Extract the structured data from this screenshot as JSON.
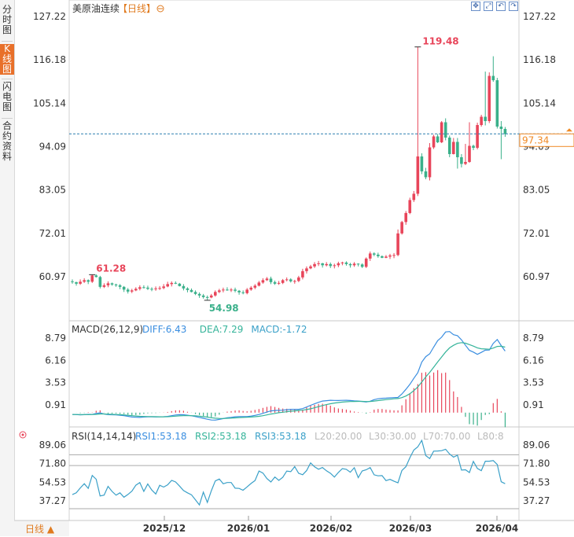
{
  "sidebar": {
    "tabs": [
      {
        "label": "分时图",
        "active": false
      },
      {
        "label": "K线图",
        "active": true
      },
      {
        "label": "闪电图",
        "active": false
      },
      {
        "label": "合约资料",
        "active": false
      }
    ]
  },
  "header": {
    "title": "美原油连续",
    "period_tag": "【日线】",
    "zoom_icon": "zoom-out-icon"
  },
  "toolbar": {
    "icons": [
      "move-icon",
      "fit-icon",
      "undo-icon",
      "redo-icon"
    ]
  },
  "bottom_bar": {
    "period_label": "日线 ▲"
  },
  "colors": {
    "up": "#e8455a",
    "down": "#3ab08a",
    "diff": "#3a8ee0",
    "dea": "#35b49a",
    "rsi": "#3aa0c8",
    "accent": "#e07a1e",
    "last_price": "#f08a24"
  },
  "chart_data": [
    {
      "panel": "price",
      "type": "candlestick",
      "title": "美原油连续【日线】",
      "y_ticks": [
        "127.22",
        "116.18",
        "105.14",
        "94.09",
        "83.05",
        "72.01",
        "60.97"
      ],
      "ylim": [
        55.0,
        127.22
      ],
      "x_ticks": [
        "2025/12",
        "2026/01",
        "2026/02",
        "2026/03",
        "2026/04"
      ],
      "annotations": {
        "high": "119.48",
        "low": "54.98",
        "start_label": "61.28"
      },
      "last_price": "97.34",
      "series": [
        {
          "name": "close",
          "open": [
            59.8,
            59.6,
            59.2,
            59.7,
            60.1,
            59.7,
            61.3,
            60.9,
            58.4,
            58.8,
            59.3,
            59.0,
            58.8,
            58.4,
            57.7,
            57.2,
            57.5,
            57.9,
            58.3,
            58.2,
            57.9,
            57.8,
            58.0,
            58.1,
            58.5,
            59.1,
            59.4,
            59.2,
            58.6,
            58.0,
            57.6,
            57.1,
            56.6,
            56.2,
            55.8,
            55.7,
            56.2,
            57.1,
            57.5,
            57.7,
            57.5,
            57.7,
            57.4,
            57.0,
            56.8,
            57.7,
            58.2,
            58.7,
            59.5,
            60.1,
            60.5,
            59.6,
            59.2,
            59.4,
            60.1,
            60.3,
            59.8,
            59.9,
            60.8,
            62.4,
            63.1,
            63.6,
            64.2,
            64.4,
            63.9,
            64.2,
            63.7,
            63.9,
            64.4,
            64.6,
            64.2,
            63.9,
            64.3,
            64.1,
            63.5,
            65.6,
            66.9,
            66.6,
            66.2,
            65.8,
            66.1,
            66.4,
            66.5,
            72.0,
            74.9,
            77.2,
            80.5,
            82.1,
            91.6,
            87.8,
            86.3,
            93.9,
            96.7,
            95.2,
            100.3,
            96.4,
            92.2,
            95.3,
            91.4,
            89.7,
            90.2,
            94.3,
            93.8,
            99.6,
            101.7,
            100.6,
            112.1,
            111.0,
            99.2,
            98.6
          ],
          "close": [
            59.6,
            59.2,
            59.7,
            60.1,
            59.7,
            61.3,
            60.9,
            58.4,
            58.8,
            59.3,
            59.0,
            58.8,
            58.4,
            57.7,
            57.2,
            57.5,
            57.9,
            58.3,
            58.2,
            57.9,
            57.8,
            58.0,
            58.1,
            58.5,
            59.1,
            59.4,
            59.2,
            58.6,
            58.0,
            57.6,
            57.1,
            56.6,
            56.2,
            55.8,
            55.7,
            56.2,
            57.1,
            57.5,
            57.7,
            57.5,
            57.7,
            57.4,
            57.0,
            56.8,
            57.7,
            58.2,
            58.7,
            59.5,
            60.1,
            60.5,
            59.6,
            59.2,
            59.4,
            60.1,
            60.3,
            59.8,
            59.9,
            60.8,
            62.4,
            63.1,
            63.6,
            64.2,
            64.4,
            63.9,
            64.2,
            63.7,
            63.9,
            64.4,
            64.6,
            64.2,
            63.9,
            64.3,
            64.1,
            63.5,
            65.6,
            66.9,
            66.6,
            66.2,
            65.8,
            66.1,
            66.4,
            66.5,
            72.0,
            74.9,
            77.2,
            80.5,
            82.1,
            91.6,
            87.8,
            86.3,
            93.9,
            96.7,
            95.2,
            100.3,
            96.4,
            92.2,
            95.3,
            91.4,
            89.7,
            90.2,
            94.3,
            93.8,
            99.6,
            101.7,
            100.6,
            112.1,
            111.0,
            99.2,
            98.6,
            97.3
          ],
          "high": [
            60.3,
            59.7,
            60.3,
            60.6,
            60.3,
            61.5,
            61.6,
            61.2,
            59.3,
            59.8,
            59.5,
            59.2,
            59.1,
            58.6,
            58.1,
            57.9,
            58.3,
            58.8,
            58.8,
            58.7,
            58.3,
            58.5,
            58.6,
            59.1,
            59.7,
            59.8,
            59.8,
            59.4,
            59.1,
            58.3,
            58.0,
            57.5,
            57.0,
            56.6,
            56.2,
            56.6,
            57.5,
            57.9,
            58.2,
            58.3,
            58.1,
            58.2,
            57.6,
            57.5,
            58.1,
            58.6,
            59.1,
            59.9,
            60.6,
            60.9,
            61.0,
            60.0,
            59.9,
            60.4,
            60.8,
            60.6,
            60.2,
            61.2,
            63.0,
            63.6,
            64.0,
            64.7,
            65.0,
            64.5,
            64.7,
            64.6,
            64.3,
            64.8,
            64.8,
            64.9,
            64.5,
            64.7,
            64.4,
            64.4,
            65.9,
            67.4,
            67.2,
            67.1,
            66.4,
            66.5,
            66.8,
            67.0,
            73.0,
            75.2,
            77.7,
            81.1,
            82.8,
            119.48,
            92.4,
            88.7,
            95.0,
            97.1,
            97.3,
            100.6,
            101.3,
            96.9,
            96.3,
            96.3,
            92.2,
            94.8,
            100.3,
            94.6,
            100.2,
            102.2,
            113.2,
            113.0,
            117.1,
            111.6,
            100.6,
            99.1
          ],
          "low": [
            59.2,
            58.7,
            58.9,
            59.4,
            59.1,
            59.4,
            60.8,
            58.0,
            58.1,
            58.3,
            58.7,
            58.4,
            57.8,
            57.1,
            56.7,
            56.8,
            57.3,
            57.5,
            58.0,
            57.6,
            57.3,
            57.4,
            57.6,
            57.8,
            58.3,
            58.5,
            59.1,
            58.5,
            57.5,
            57.0,
            57.0,
            56.3,
            55.6,
            55.4,
            54.98,
            55.5,
            55.9,
            56.8,
            57.0,
            57.4,
            57.1,
            57.0,
            56.4,
            56.5,
            56.5,
            57.4,
            57.8,
            58.5,
            59.2,
            59.9,
            59.1,
            58.9,
            58.9,
            59.1,
            59.8,
            59.5,
            59.2,
            59.6,
            60.3,
            61.8,
            62.9,
            63.2,
            63.7,
            63.3,
            63.6,
            63.2,
            63.1,
            63.4,
            63.9,
            63.8,
            63.3,
            63.5,
            63.6,
            63.2,
            63.2,
            65.0,
            66.2,
            65.8,
            65.7,
            65.7,
            65.5,
            65.7,
            66.2,
            71.7,
            74.2,
            76.9,
            80.0,
            81.5,
            87.1,
            85.8,
            85.5,
            93.5,
            95.0,
            95.0,
            95.7,
            91.4,
            92.1,
            88.5,
            88.8,
            89.4,
            90.0,
            93.2,
            93.4,
            99.2,
            99.5,
            100.1,
            110.6,
            98.7,
            90.9,
            96.6
          ]
        }
      ]
    },
    {
      "panel": "macd",
      "type": "line",
      "params": "MACD(26,12,9)",
      "legend": [
        {
          "label": "DIFF:6.43",
          "color": "#3a8ee0"
        },
        {
          "label": "DEA:7.29",
          "color": "#35b49a"
        },
        {
          "label": "MACD:-1.72",
          "color": "#3aa0c8"
        }
      ],
      "y_ticks": [
        "8.79",
        "6.16",
        "3.53",
        "0.91"
      ],
      "ylim": [
        -1.9,
        9.9
      ],
      "series": [
        {
          "name": "DIFF",
          "values": [
            -0.22,
            -0.23,
            -0.26,
            -0.24,
            -0.2,
            -0.21,
            -0.09,
            -0.03,
            -0.17,
            -0.24,
            -0.25,
            -0.27,
            -0.31,
            -0.35,
            -0.43,
            -0.52,
            -0.55,
            -0.56,
            -0.52,
            -0.5,
            -0.5,
            -0.51,
            -0.5,
            -0.48,
            -0.44,
            -0.36,
            -0.28,
            -0.24,
            -0.25,
            -0.3,
            -0.37,
            -0.46,
            -0.56,
            -0.67,
            -0.78,
            -0.87,
            -0.88,
            -0.8,
            -0.7,
            -0.61,
            -0.56,
            -0.49,
            -0.46,
            -0.46,
            -0.47,
            -0.41,
            -0.32,
            -0.22,
            -0.08,
            0.07,
            0.21,
            0.25,
            0.27,
            0.29,
            0.34,
            0.39,
            0.39,
            0.39,
            0.47,
            0.66,
            0.86,
            1.04,
            1.22,
            1.36,
            1.41,
            1.46,
            1.44,
            1.43,
            1.45,
            1.46,
            1.43,
            1.38,
            1.36,
            1.32,
            1.25,
            1.35,
            1.53,
            1.63,
            1.69,
            1.71,
            1.74,
            1.77,
            1.79,
            2.2,
            2.75,
            3.34,
            4.04,
            4.7,
            5.96,
            6.6,
            6.94,
            7.72,
            8.48,
            8.89,
            9.51,
            9.56,
            9.19,
            9.08,
            8.59,
            7.94,
            7.34,
            7.14,
            6.87,
            7.1,
            7.36,
            7.38,
            8.17,
            8.62,
            7.91,
            7.26
          ]
        },
        {
          "name": "DEA",
          "values": [
            -0.22,
            -0.22,
            -0.23,
            -0.23,
            -0.23,
            -0.22,
            -0.2,
            -0.16,
            -0.16,
            -0.18,
            -0.2,
            -0.22,
            -0.24,
            -0.27,
            -0.31,
            -0.36,
            -0.4,
            -0.43,
            -0.45,
            -0.46,
            -0.47,
            -0.48,
            -0.49,
            -0.49,
            -0.48,
            -0.45,
            -0.42,
            -0.38,
            -0.36,
            -0.35,
            -0.36,
            -0.38,
            -0.42,
            -0.47,
            -0.53,
            -0.6,
            -0.66,
            -0.68,
            -0.69,
            -0.67,
            -0.65,
            -0.62,
            -0.59,
            -0.56,
            -0.55,
            -0.52,
            -0.48,
            -0.43,
            -0.36,
            -0.27,
            -0.17,
            -0.09,
            -0.01,
            0.05,
            0.11,
            0.17,
            0.21,
            0.25,
            0.29,
            0.36,
            0.46,
            0.58,
            0.71,
            0.84,
            0.95,
            1.05,
            1.13,
            1.19,
            1.24,
            1.28,
            1.31,
            1.32,
            1.33,
            1.33,
            1.31,
            1.32,
            1.36,
            1.42,
            1.48,
            1.53,
            1.58,
            1.63,
            1.66,
            1.77,
            1.96,
            2.24,
            2.6,
            3.02,
            3.61,
            4.21,
            4.75,
            5.35,
            5.97,
            6.56,
            7.15,
            7.64,
            7.94,
            8.17,
            8.25,
            8.19,
            8.02,
            7.84,
            7.64,
            7.53,
            7.5,
            7.47,
            7.61,
            7.81,
            7.83,
            7.72
          ]
        },
        {
          "name": "MACD",
          "values": [
            0.0,
            -0.01,
            -0.06,
            -0.04,
            0.05,
            0.03,
            0.22,
            0.27,
            -0.02,
            -0.12,
            -0.11,
            -0.1,
            -0.13,
            -0.16,
            -0.24,
            -0.32,
            -0.29,
            -0.25,
            -0.15,
            -0.08,
            -0.06,
            -0.05,
            -0.02,
            0.02,
            0.08,
            0.18,
            0.27,
            0.28,
            0.22,
            0.1,
            -0.02,
            -0.16,
            -0.28,
            -0.4,
            -0.51,
            -0.55,
            -0.45,
            -0.25,
            -0.02,
            0.12,
            0.18,
            0.25,
            0.27,
            0.2,
            0.16,
            0.22,
            0.32,
            0.42,
            0.56,
            0.68,
            0.77,
            0.67,
            0.56,
            0.48,
            0.46,
            0.44,
            0.37,
            0.28,
            0.36,
            0.61,
            0.81,
            0.92,
            1.02,
            1.05,
            0.92,
            0.82,
            0.62,
            0.49,
            0.43,
            0.36,
            0.24,
            0.13,
            0.06,
            -0.02,
            -0.12,
            0.05,
            0.35,
            0.43,
            0.43,
            0.36,
            0.31,
            0.27,
            0.26,
            0.86,
            1.58,
            2.2,
            2.89,
            3.36,
            4.7,
            4.77,
            4.38,
            4.73,
            5.01,
            4.66,
            4.72,
            3.84,
            2.5,
            1.84,
            0.68,
            -0.5,
            -1.36,
            -1.41,
            -1.53,
            -0.87,
            -0.28,
            -0.18,
            1.12,
            1.62,
            0.15,
            -1.72
          ]
        }
      ]
    },
    {
      "panel": "rsi",
      "type": "line",
      "params": "RSI(14,14,14)",
      "legend": [
        {
          "label": "RSI1:53.18",
          "color": "#3a8ee0"
        },
        {
          "label": "RSI2:53.18",
          "color": "#35b49a"
        },
        {
          "label": "RSI3:53.18",
          "color": "#3aa0c8"
        },
        {
          "label": "L20:20.00",
          "color": "#bbbbbb"
        },
        {
          "label": "L30:30.00",
          "color": "#bbbbbb"
        },
        {
          "label": "L70:70.00",
          "color": "#bbbbbb"
        },
        {
          "label": "L80:8",
          "color": "#bbbbbb"
        }
      ],
      "y_ticks": [
        "89.06",
        "71.80",
        "54.53",
        "37.27"
      ],
      "ylim": [
        20.0,
        94.0
      ],
      "reference_lines": [
        30,
        70,
        80
      ],
      "series": [
        {
          "name": "RSI1",
          "values": [
            43.0,
            44.7,
            49.2,
            53.2,
            48.8,
            60.8,
            57.3,
            41.8,
            42.6,
            50.7,
            46.0,
            42.5,
            44.7,
            40.6,
            43.2,
            46.3,
            51.8,
            54.2,
            46.0,
            52.9,
            47.3,
            43.6,
            51.7,
            50.0,
            52.1,
            56.2,
            54.8,
            51.0,
            46.8,
            44.7,
            42.9,
            38.3,
            33.5,
            45.3,
            35.8,
            46.7,
            55.7,
            57.5,
            53.1,
            54.3,
            54.3,
            49.0,
            48.8,
            47.1,
            50.2,
            53.4,
            56.1,
            64.9,
            63.0,
            58.0,
            54.8,
            59.4,
            56.2,
            59.1,
            64.9,
            64.3,
            69.0,
            62.8,
            61.5,
            65.3,
            72.5,
            68.8,
            66.6,
            68.2,
            65.1,
            62.8,
            59.3,
            63.6,
            67.2,
            66.5,
            63.8,
            68.0,
            58.8,
            65.0,
            66.1,
            68.1,
            61.4,
            60.5,
            60.7,
            56.0,
            57.2,
            55.4,
            54.0,
            65.4,
            68.9,
            77.3,
            84.4,
            87.3,
            93.4,
            79.2,
            76.5,
            83.4,
            83.5,
            83.8,
            85.1,
            80.7,
            77.8,
            79.6,
            65.8,
            66.1,
            63.5,
            73.9,
            67.3,
            65.3,
            74.0,
            74.0,
            74.6,
            71.0,
            55.0,
            53.2
          ]
        }
      ]
    }
  ]
}
